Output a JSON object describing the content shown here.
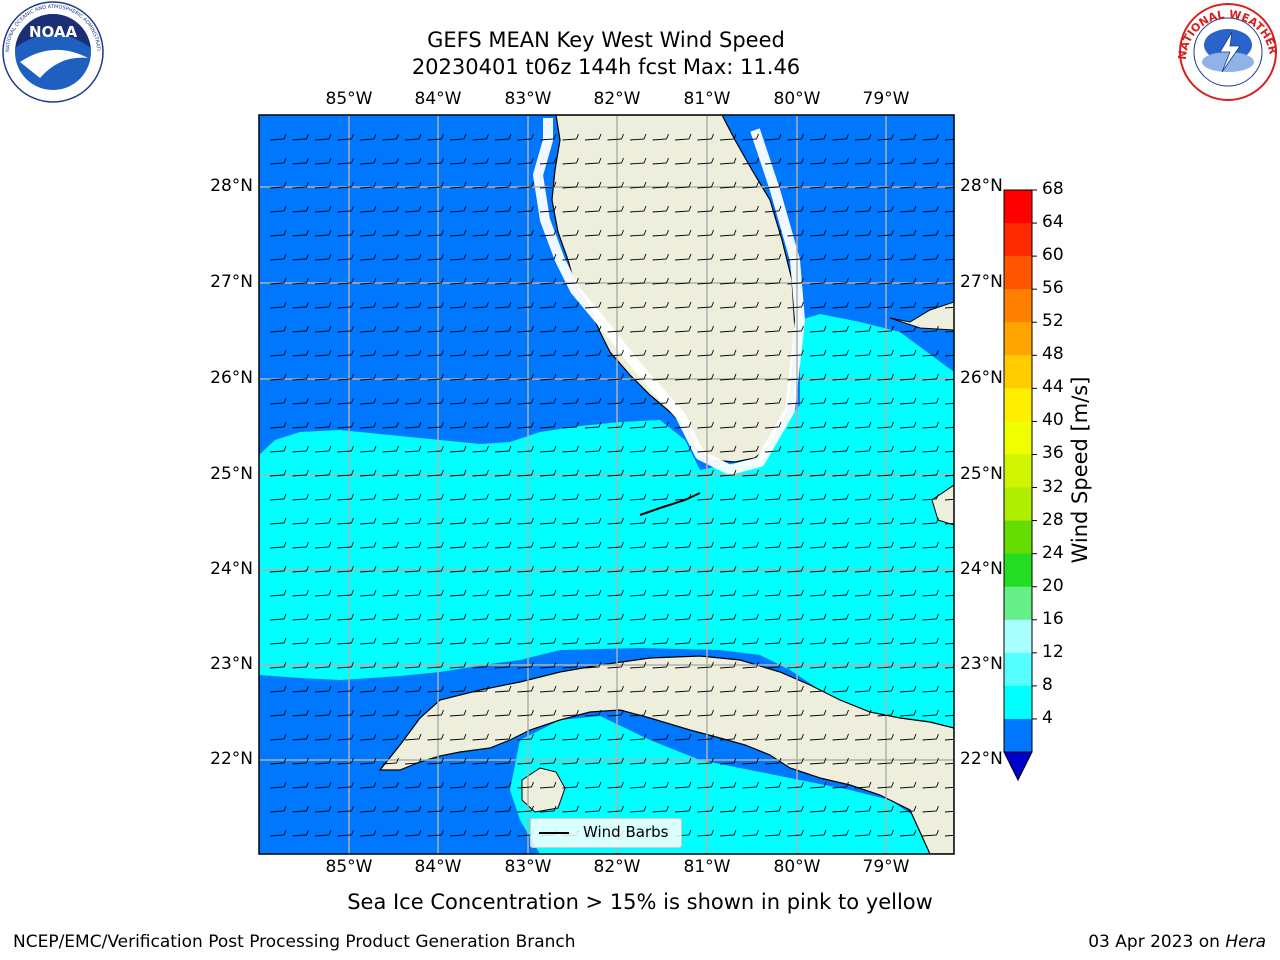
{
  "title_line1": "GEFS MEAN Key West Wind Speed",
  "title_line2": "20230401 t06z 144h fcst   Max: 11.46",
  "lon_ticks": [
    "85°W",
    "84°W",
    "83°W",
    "82°W",
    "81°W",
    "80°W",
    "79°W"
  ],
  "lat_ticks": [
    "28°N",
    "27°N",
    "26°N",
    "25°N",
    "24°N",
    "23°N",
    "22°N"
  ],
  "colorbar": {
    "label": "Wind Speed [m/s]",
    "ticks": [
      "68",
      "64",
      "60",
      "56",
      "52",
      "48",
      "44",
      "40",
      "36",
      "32",
      "28",
      "24",
      "20",
      "16",
      "12",
      "8",
      "4"
    ],
    "colors": [
      "#ff0000",
      "#ff2a00",
      "#ff5500",
      "#ff7f00",
      "#ffa500",
      "#ffcc00",
      "#ffee00",
      "#f0ff00",
      "#d0f500",
      "#b0ee00",
      "#66dd00",
      "#22dd22",
      "#66ee88",
      "#aaffff",
      "#55ffff",
      "#00ffff",
      "#0077ff"
    ],
    "extend_color": "#0000cc"
  },
  "legend": {
    "label": "Wind Barbs"
  },
  "caption": "Sea Ice Concentration > 15% is shown in pink to yellow",
  "footer_left": "NCEP/EMC/Verification Post Processing Product Generation Branch",
  "footer_right_text": "03 Apr 2023 on ",
  "footer_right_host": "Hera",
  "logos": {
    "noaa": "NOAA",
    "nws_ring": "NATIONAL WEATHER SERVICE",
    "noaa_ring": "NATIONAL OCEANIC AND ATMOSPHERIC ADMINISTRATION · U.S. DEPARTMENT OF COMMERCE"
  },
  "colors": {
    "ocean_blue": "#0077ff",
    "ocean_cyan": "#00ffff",
    "land": "#eeeedd",
    "grid": "#b0b0b0"
  }
}
